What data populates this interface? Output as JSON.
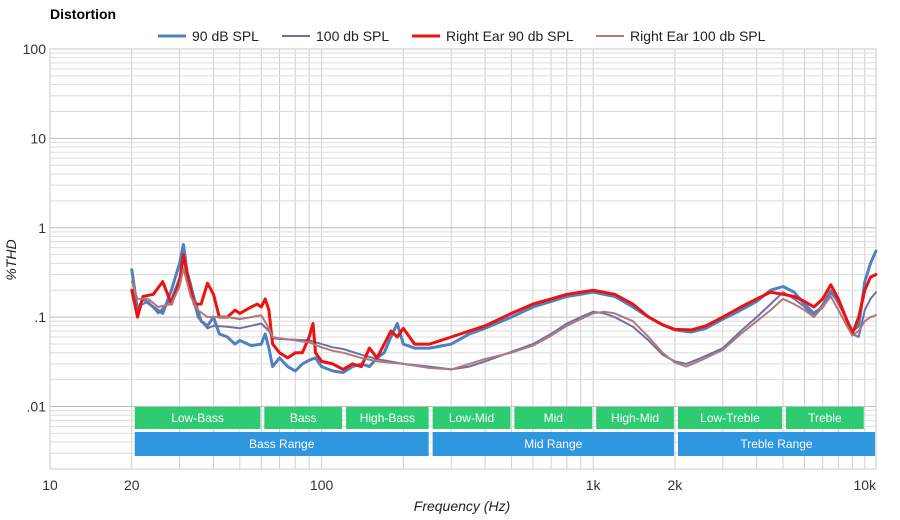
{
  "chart_data": {
    "type": "line",
    "title": "Distortion",
    "xlabel": "Frequency (Hz)",
    "ylabel": "%THD",
    "xscale": "log",
    "yscale": "log",
    "xlim": [
      10,
      11000
    ],
    "ylim": [
      0.002,
      100
    ],
    "grid": true,
    "legend_position": "top",
    "x_ticks": [
      {
        "value": 10,
        "label": "10"
      },
      {
        "value": 20,
        "label": "20"
      },
      {
        "value": 100,
        "label": "100"
      },
      {
        "value": 1000,
        "label": "1k"
      },
      {
        "value": 2000,
        "label": "2k"
      },
      {
        "value": 10000,
        "label": "10k"
      }
    ],
    "y_ticks": [
      {
        "value": 100,
        "label": "100"
      },
      {
        "value": 10,
        "label": "10"
      },
      {
        "value": 1,
        "label": "1"
      },
      {
        "value": 0.1,
        "label": ".1"
      },
      {
        "value": 0.01,
        "label": ".01"
      }
    ],
    "series": [
      {
        "name": "90 dB SPL",
        "color": "#4f81bd",
        "width": 3,
        "points": [
          [
            20,
            0.34
          ],
          [
            21,
            0.12
          ],
          [
            22,
            0.16
          ],
          [
            24,
            0.13
          ],
          [
            26,
            0.11
          ],
          [
            28,
            0.2
          ],
          [
            30,
            0.4
          ],
          [
            31,
            0.65
          ],
          [
            32,
            0.32
          ],
          [
            34,
            0.16
          ],
          [
            36,
            0.09
          ],
          [
            38,
            0.08
          ],
          [
            40,
            0.1
          ],
          [
            42,
            0.065
          ],
          [
            45,
            0.06
          ],
          [
            48,
            0.05
          ],
          [
            50,
            0.055
          ],
          [
            55,
            0.048
          ],
          [
            60,
            0.05
          ],
          [
            62,
            0.065
          ],
          [
            64,
            0.045
          ],
          [
            66,
            0.028
          ],
          [
            70,
            0.035
          ],
          [
            75,
            0.028
          ],
          [
            80,
            0.025
          ],
          [
            85,
            0.03
          ],
          [
            90,
            0.033
          ],
          [
            95,
            0.035
          ],
          [
            100,
            0.028
          ],
          [
            110,
            0.025
          ],
          [
            120,
            0.024
          ],
          [
            130,
            0.028
          ],
          [
            140,
            0.03
          ],
          [
            150,
            0.028
          ],
          [
            160,
            0.035
          ],
          [
            170,
            0.04
          ],
          [
            180,
            0.06
          ],
          [
            190,
            0.085
          ],
          [
            200,
            0.05
          ],
          [
            220,
            0.045
          ],
          [
            250,
            0.045
          ],
          [
            300,
            0.05
          ],
          [
            350,
            0.065
          ],
          [
            400,
            0.075
          ],
          [
            500,
            0.1
          ],
          [
            600,
            0.13
          ],
          [
            700,
            0.15
          ],
          [
            800,
            0.17
          ],
          [
            900,
            0.18
          ],
          [
            1000,
            0.19
          ],
          [
            1200,
            0.17
          ],
          [
            1400,
            0.13
          ],
          [
            1600,
            0.1
          ],
          [
            1800,
            0.082
          ],
          [
            2000,
            0.072
          ],
          [
            2300,
            0.068
          ],
          [
            2600,
            0.075
          ],
          [
            3000,
            0.095
          ],
          [
            3500,
            0.12
          ],
          [
            4000,
            0.15
          ],
          [
            4500,
            0.2
          ],
          [
            5000,
            0.22
          ],
          [
            5500,
            0.19
          ],
          [
            6000,
            0.14
          ],
          [
            6500,
            0.11
          ],
          [
            7000,
            0.13
          ],
          [
            7500,
            0.19
          ],
          [
            8000,
            0.15
          ],
          [
            8500,
            0.1
          ],
          [
            9000,
            0.07
          ],
          [
            9500,
            0.08
          ],
          [
            10000,
            0.25
          ],
          [
            10500,
            0.4
          ],
          [
            11000,
            0.55
          ]
        ]
      },
      {
        "name": "100 db SPL",
        "color": "#7070a8",
        "width": 2,
        "points": [
          [
            20,
            0.2
          ],
          [
            21,
            0.13
          ],
          [
            23,
            0.15
          ],
          [
            25,
            0.11
          ],
          [
            28,
            0.16
          ],
          [
            30,
            0.28
          ],
          [
            31,
            0.45
          ],
          [
            33,
            0.2
          ],
          [
            35,
            0.1
          ],
          [
            38,
            0.075
          ],
          [
            40,
            0.08
          ],
          [
            45,
            0.078
          ],
          [
            50,
            0.075
          ],
          [
            55,
            0.08
          ],
          [
            60,
            0.085
          ],
          [
            64,
            0.07
          ],
          [
            66,
            0.058
          ],
          [
            70,
            0.057
          ],
          [
            80,
            0.056
          ],
          [
            90,
            0.055
          ],
          [
            100,
            0.05
          ],
          [
            110,
            0.046
          ],
          [
            120,
            0.044
          ],
          [
            140,
            0.038
          ],
          [
            160,
            0.034
          ],
          [
            200,
            0.03
          ],
          [
            250,
            0.028
          ],
          [
            300,
            0.026
          ],
          [
            350,
            0.028
          ],
          [
            400,
            0.032
          ],
          [
            500,
            0.041
          ],
          [
            600,
            0.05
          ],
          [
            700,
            0.065
          ],
          [
            800,
            0.085
          ],
          [
            900,
            0.1
          ],
          [
            1000,
            0.115
          ],
          [
            1100,
            0.11
          ],
          [
            1200,
            0.1
          ],
          [
            1400,
            0.078
          ],
          [
            1600,
            0.055
          ],
          [
            1800,
            0.038
          ],
          [
            2000,
            0.032
          ],
          [
            2200,
            0.03
          ],
          [
            2500,
            0.035
          ],
          [
            3000,
            0.045
          ],
          [
            3500,
            0.07
          ],
          [
            4000,
            0.1
          ],
          [
            4500,
            0.14
          ],
          [
            5000,
            0.19
          ],
          [
            5500,
            0.16
          ],
          [
            6000,
            0.13
          ],
          [
            6500,
            0.1
          ],
          [
            7000,
            0.14
          ],
          [
            7500,
            0.2
          ],
          [
            8000,
            0.14
          ],
          [
            8500,
            0.1
          ],
          [
            9000,
            0.065
          ],
          [
            9500,
            0.06
          ],
          [
            10000,
            0.12
          ],
          [
            10500,
            0.16
          ],
          [
            11000,
            0.19
          ]
        ]
      },
      {
        "name": "Right Ear 90 db SPL",
        "color": "#ee1111",
        "width": 3,
        "points": [
          [
            20,
            0.2
          ],
          [
            21,
            0.1
          ],
          [
            22,
            0.17
          ],
          [
            24,
            0.18
          ],
          [
            26,
            0.25
          ],
          [
            28,
            0.14
          ],
          [
            30,
            0.25
          ],
          [
            31,
            0.5
          ],
          [
            32,
            0.3
          ],
          [
            34,
            0.14
          ],
          [
            36,
            0.14
          ],
          [
            38,
            0.24
          ],
          [
            40,
            0.18
          ],
          [
            42,
            0.1
          ],
          [
            45,
            0.1
          ],
          [
            48,
            0.12
          ],
          [
            50,
            0.11
          ],
          [
            55,
            0.13
          ],
          [
            58,
            0.14
          ],
          [
            60,
            0.13
          ],
          [
            62,
            0.16
          ],
          [
            64,
            0.12
          ],
          [
            66,
            0.05
          ],
          [
            70,
            0.04
          ],
          [
            75,
            0.035
          ],
          [
            80,
            0.04
          ],
          [
            85,
            0.04
          ],
          [
            90,
            0.06
          ],
          [
            93,
            0.085
          ],
          [
            95,
            0.04
          ],
          [
            100,
            0.032
          ],
          [
            110,
            0.03
          ],
          [
            120,
            0.026
          ],
          [
            130,
            0.03
          ],
          [
            140,
            0.028
          ],
          [
            150,
            0.045
          ],
          [
            160,
            0.035
          ],
          [
            170,
            0.05
          ],
          [
            180,
            0.07
          ],
          [
            190,
            0.06
          ],
          [
            200,
            0.075
          ],
          [
            220,
            0.05
          ],
          [
            250,
            0.05
          ],
          [
            300,
            0.06
          ],
          [
            350,
            0.07
          ],
          [
            400,
            0.08
          ],
          [
            500,
            0.11
          ],
          [
            600,
            0.14
          ],
          [
            700,
            0.16
          ],
          [
            800,
            0.18
          ],
          [
            900,
            0.19
          ],
          [
            1000,
            0.2
          ],
          [
            1200,
            0.18
          ],
          [
            1400,
            0.14
          ],
          [
            1600,
            0.1
          ],
          [
            1800,
            0.082
          ],
          [
            2000,
            0.073
          ],
          [
            2300,
            0.072
          ],
          [
            2600,
            0.08
          ],
          [
            3000,
            0.1
          ],
          [
            3500,
            0.13
          ],
          [
            4000,
            0.16
          ],
          [
            4500,
            0.19
          ],
          [
            5000,
            0.18
          ],
          [
            5500,
            0.17
          ],
          [
            6000,
            0.15
          ],
          [
            6500,
            0.13
          ],
          [
            7000,
            0.16
          ],
          [
            7500,
            0.23
          ],
          [
            8000,
            0.16
          ],
          [
            8500,
            0.1
          ],
          [
            9000,
            0.065
          ],
          [
            9500,
            0.1
          ],
          [
            10000,
            0.2
          ],
          [
            10500,
            0.28
          ],
          [
            11000,
            0.3
          ]
        ]
      },
      {
        "name": "Right Ear 100 db SPL",
        "color": "#b07a7a",
        "width": 2,
        "points": [
          [
            20,
            0.25
          ],
          [
            21,
            0.16
          ],
          [
            23,
            0.16
          ],
          [
            25,
            0.13
          ],
          [
            28,
            0.14
          ],
          [
            30,
            0.22
          ],
          [
            31,
            0.35
          ],
          [
            33,
            0.17
          ],
          [
            35,
            0.12
          ],
          [
            38,
            0.1
          ],
          [
            40,
            0.1
          ],
          [
            45,
            0.1
          ],
          [
            50,
            0.095
          ],
          [
            55,
            0.1
          ],
          [
            60,
            0.105
          ],
          [
            64,
            0.075
          ],
          [
            66,
            0.06
          ],
          [
            70,
            0.058
          ],
          [
            80,
            0.055
          ],
          [
            90,
            0.052
          ],
          [
            100,
            0.046
          ],
          [
            110,
            0.042
          ],
          [
            120,
            0.04
          ],
          [
            140,
            0.035
          ],
          [
            160,
            0.032
          ],
          [
            200,
            0.03
          ],
          [
            250,
            0.027
          ],
          [
            300,
            0.026
          ],
          [
            350,
            0.03
          ],
          [
            400,
            0.034
          ],
          [
            500,
            0.04
          ],
          [
            600,
            0.048
          ],
          [
            700,
            0.062
          ],
          [
            800,
            0.08
          ],
          [
            900,
            0.095
          ],
          [
            1000,
            0.11
          ],
          [
            1100,
            0.115
          ],
          [
            1200,
            0.11
          ],
          [
            1400,
            0.09
          ],
          [
            1600,
            0.06
          ],
          [
            1800,
            0.04
          ],
          [
            2000,
            0.031
          ],
          [
            2200,
            0.028
          ],
          [
            2500,
            0.033
          ],
          [
            3000,
            0.043
          ],
          [
            3500,
            0.065
          ],
          [
            4000,
            0.09
          ],
          [
            4500,
            0.12
          ],
          [
            5000,
            0.16
          ],
          [
            5500,
            0.14
          ],
          [
            6000,
            0.12
          ],
          [
            6500,
            0.1
          ],
          [
            7000,
            0.13
          ],
          [
            7500,
            0.17
          ],
          [
            8000,
            0.12
          ],
          [
            8500,
            0.085
          ],
          [
            9000,
            0.062
          ],
          [
            9500,
            0.07
          ],
          [
            10000,
            0.09
          ],
          [
            10500,
            0.1
          ],
          [
            11000,
            0.105
          ]
        ]
      }
    ],
    "bands": [
      {
        "label": "Low-Bass",
        "from": 20,
        "to": 60,
        "row": 1,
        "color": "#2ecc71"
      },
      {
        "label": "Bass",
        "from": 60,
        "to": 120,
        "row": 1,
        "color": "#2ecc71"
      },
      {
        "label": "High-Bass",
        "from": 120,
        "to": 250,
        "row": 1,
        "color": "#2ecc71"
      },
      {
        "label": "Low-Mid",
        "from": 250,
        "to": 500,
        "row": 1,
        "color": "#2ecc71"
      },
      {
        "label": "Mid",
        "from": 500,
        "to": 1000,
        "row": 1,
        "color": "#2ecc71"
      },
      {
        "label": "High-Mid",
        "from": 1000,
        "to": 2000,
        "row": 1,
        "color": "#2ecc71"
      },
      {
        "label": "Low-Treble",
        "from": 2000,
        "to": 5000,
        "row": 1,
        "color": "#2ecc71"
      },
      {
        "label": "Treble",
        "from": 5000,
        "to": 10000,
        "row": 1,
        "color": "#2ecc71"
      },
      {
        "label": "Bass Range",
        "from": 20,
        "to": 250,
        "row": 2,
        "color": "#2f96e0"
      },
      {
        "label": "Mid Range",
        "from": 250,
        "to": 2000,
        "row": 2,
        "color": "#2f96e0"
      },
      {
        "label": "Treble Range",
        "from": 2000,
        "to": 11000,
        "row": 2,
        "color": "#2f96e0"
      }
    ]
  }
}
